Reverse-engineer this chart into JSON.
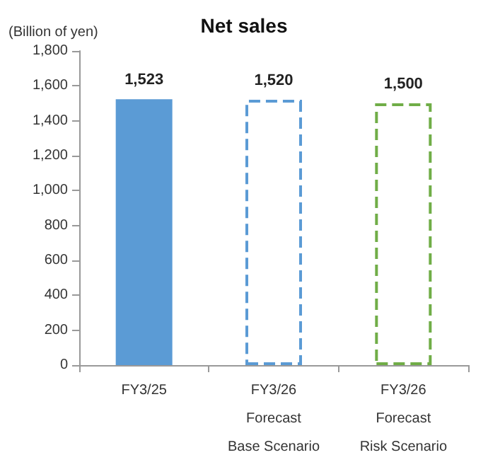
{
  "chart_data": {
    "type": "bar",
    "title": "Net sales",
    "ylabel": "(Billion of yen)",
    "categories": [
      "FY3/25",
      "FY3/26\nForecast\nBase Scenario",
      "FY3/26\nForecast\nRisk Scenario"
    ],
    "series": [
      {
        "color": "#5b9bd5",
        "values": [
          1523,
          null,
          null
        ],
        "value_labels": [
          "1,523",
          null,
          null
        ]
      },
      {
        "color": "#5b9bd5",
        "values": [
          null,
          1520,
          null
        ],
        "value_labels": [
          null,
          "1,520",
          null
        ],
        "line_style": "dashed"
      },
      {
        "color": "#70ad47",
        "values": [
          null,
          null,
          1500
        ],
        "value_labels": [
          null,
          null,
          "1,500"
        ],
        "line_style": "dashed"
      }
    ],
    "ylim": [
      0,
      1800
    ],
    "yticks": [
      0,
      200,
      400,
      600,
      800,
      {
        "value": 1000,
        "label": "1,000"
      },
      {
        "value": 1200,
        "label": "1,200"
      },
      {
        "value": 1400,
        "label": "1,400"
      },
      {
        "value": 1600,
        "label": "1,600"
      },
      {
        "value": 1800,
        "label": "1,800"
      }
    ],
    "grid": false
  }
}
